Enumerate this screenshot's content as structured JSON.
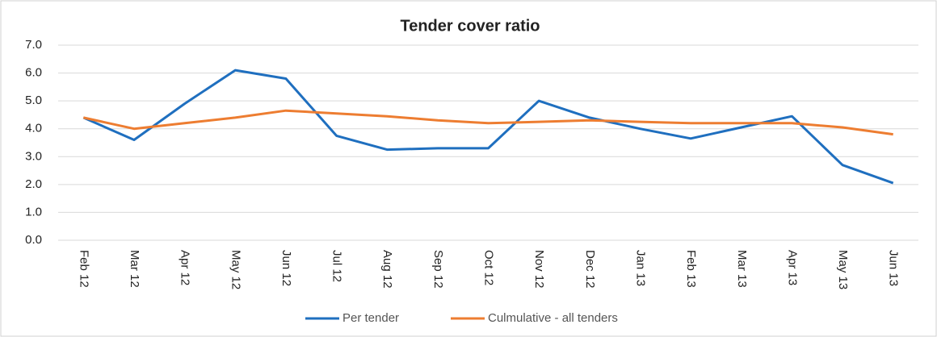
{
  "chart_data": {
    "type": "line",
    "title": "Tender cover ratio",
    "categories": [
      "Feb 12",
      "Mar 12",
      "Apr 12",
      "May 12",
      "Jun 12",
      "Jul 12",
      "Aug 12",
      "Sep 12",
      "Oct 12",
      "Nov 12",
      "Dec 12",
      "Jan 13",
      "Feb 13",
      "Mar 13",
      "Apr 13",
      "May 13",
      "Jun 13"
    ],
    "series": [
      {
        "name": "Per tender",
        "color": "#1f6fbf",
        "values": [
          4.4,
          3.6,
          4.9,
          6.1,
          5.8,
          3.75,
          3.25,
          3.3,
          3.3,
          5.0,
          4.4,
          4.0,
          3.65,
          4.05,
          4.45,
          2.7,
          2.05
        ]
      },
      {
        "name": "Culmulative - all tenders",
        "color": "#ed7d31",
        "values": [
          4.4,
          4.0,
          4.2,
          4.4,
          4.65,
          4.55,
          4.45,
          4.3,
          4.2,
          4.25,
          4.3,
          4.25,
          4.2,
          4.2,
          4.2,
          4.05,
          3.8
        ]
      }
    ],
    "ylim": [
      0,
      7
    ],
    "yticks": [
      {
        "value": 0,
        "label": "0.0"
      },
      {
        "value": 1,
        "label": "1.0"
      },
      {
        "value": 2,
        "label": "2.0"
      },
      {
        "value": 3,
        "label": "3.0"
      },
      {
        "value": 4,
        "label": "4.0"
      },
      {
        "value": 5,
        "label": "5.0"
      },
      {
        "value": 6,
        "label": "6.0"
      },
      {
        "value": 7,
        "label": "7.0"
      }
    ],
    "grid": true,
    "legend": "bottom"
  }
}
